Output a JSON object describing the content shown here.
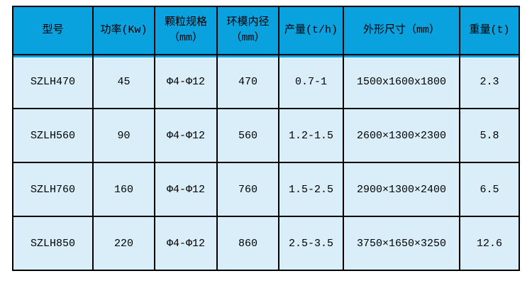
{
  "colors": {
    "header_bg": "#0AA1DF",
    "body_bg": "#D9EEF9",
    "border": "#000000",
    "text": "#000000",
    "page_bg": "#FFFFFF"
  },
  "chart_data": {
    "type": "table",
    "title": "",
    "columns": [
      "型号",
      "功率(Kw)",
      "颗粒规格\n（mm）",
      "环模内径\n（mm）",
      "产量(t/h)",
      "外形尺寸（mm）",
      "重量(t)"
    ],
    "rows": [
      [
        "SZLH470",
        "45",
        "Φ4-Φ12",
        "470",
        "0.7-1",
        "1500x1600x1800",
        "2.3"
      ],
      [
        "SZLH560",
        "90",
        "Φ4-Φ12",
        "560",
        "1.2-1.5",
        "2600×1300×2300",
        "5.8"
      ],
      [
        "SZLH760",
        "160",
        "Φ4-Φ12",
        "760",
        "1.5-2.5",
        "2900×1300×2400",
        "6.5"
      ],
      [
        "SZLH850",
        "220",
        "Φ4-Φ12",
        "860",
        "2.5-3.5",
        "3750×1650×3250",
        "12.6"
      ]
    ]
  }
}
